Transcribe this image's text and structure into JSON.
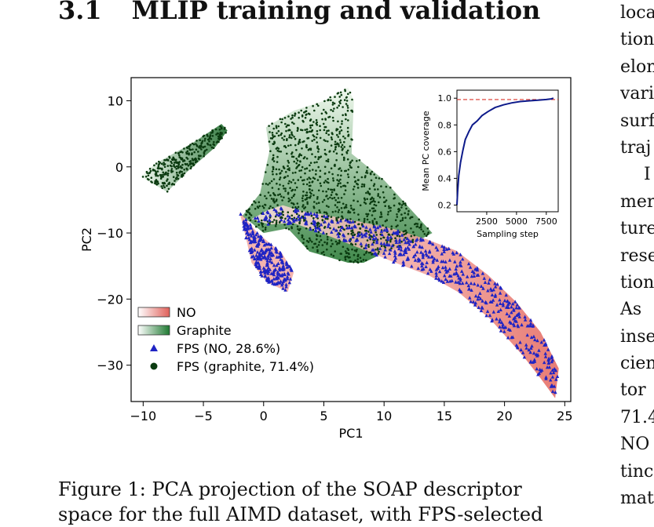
{
  "section": {
    "number": "3.1",
    "title": "MLIP training and validation"
  },
  "right_column_fragments": [
    "loca",
    "tion",
    "elon",
    "vari",
    "surf",
    "traj",
    "I",
    "mer",
    "ture",
    "rese",
    "tion",
    "As",
    "inse",
    "cien",
    "tor",
    "71.4",
    "NO",
    "tinc",
    "mat"
  ],
  "caption": {
    "line1": "Figure 1:  PCA projection of the SOAP descriptor",
    "line2": "space for the full AIMD dataset, with FPS-selected"
  },
  "colors": {
    "no": "#e8736a",
    "graphite": "#2e7d3a",
    "fps_no": "#1f24c4",
    "fps_graphite": "#0b3b10",
    "coverage": "#0d1a8a",
    "reference": "#d9352b"
  },
  "chart_data": [
    {
      "type": "scatter",
      "xlabel": "PC1",
      "ylabel": "PC2",
      "xlim": [
        -11,
        25.5
      ],
      "ylim": [
        -35.5,
        13.5
      ],
      "xticks": [
        -10,
        -5,
        0,
        5,
        10,
        15,
        20,
        25
      ],
      "yticks": [
        10,
        0,
        -10,
        -20,
        -30
      ],
      "xticklabels": [
        "−10",
        "−5",
        "0",
        "5",
        "10",
        "15",
        "20",
        "25"
      ],
      "yticklabels": [
        "10",
        "0",
        "−10",
        "−20",
        "−30"
      ],
      "legend_position": "lower-left",
      "legend": [
        {
          "label": "NO",
          "marker": "gradient-box"
        },
        {
          "label": "Graphite",
          "marker": "gradient-box"
        },
        {
          "label": "FPS (NO, 28.6%)",
          "marker": "triangle"
        },
        {
          "label": "FPS (graphite, 71.4%)",
          "marker": "circle"
        }
      ],
      "regions": {
        "graphite_cluster_small": [
          [
            -10.2,
            -1.5
          ],
          [
            -9,
            0.5
          ],
          [
            -6,
            3.5
          ],
          [
            -3.5,
            6.5
          ],
          [
            -3,
            5.5
          ],
          [
            -4,
            3
          ],
          [
            -6.5,
            -1
          ],
          [
            -8,
            -3.8
          ]
        ],
        "graphite_cluster_large": [
          [
            -1.8,
            -7.5
          ],
          [
            -0.3,
            -4
          ],
          [
            0.5,
            2.5
          ],
          [
            0.2,
            6
          ],
          [
            2.5,
            8.5
          ],
          [
            5,
            10
          ],
          [
            7,
            12
          ],
          [
            7.5,
            10
          ],
          [
            7.3,
            2
          ],
          [
            10,
            -2
          ],
          [
            12,
            -6
          ],
          [
            14,
            -10
          ],
          [
            13,
            -11
          ],
          [
            10,
            -13
          ],
          [
            8.3,
            -14.5
          ],
          [
            7,
            -14.5
          ],
          [
            3.8,
            -12.8
          ],
          [
            2,
            -9.3
          ],
          [
            0,
            -10
          ],
          [
            -1,
            -8.5
          ]
        ],
        "no_band_lower": [
          [
            -1,
            -7.9
          ],
          [
            0.4,
            -6.5
          ],
          [
            1.6,
            -5.8
          ],
          [
            3.2,
            -6.7
          ],
          [
            5.2,
            -7.3
          ],
          [
            8,
            -8.3
          ],
          [
            10.8,
            -9.4
          ],
          [
            13.6,
            -11
          ],
          [
            16,
            -12.7
          ],
          [
            18.6,
            -16.3
          ],
          [
            21,
            -20.5
          ],
          [
            23,
            -25
          ],
          [
            24.5,
            -30.5
          ],
          [
            24.2,
            -35
          ],
          [
            23,
            -32
          ],
          [
            21.5,
            -28.5
          ],
          [
            18.8,
            -23
          ],
          [
            16.2,
            -19
          ],
          [
            13.8,
            -16.5
          ],
          [
            10.8,
            -14.4
          ],
          [
            8,
            -12.3
          ],
          [
            5.2,
            -10.3
          ],
          [
            2.5,
            -8.5
          ],
          [
            0.5,
            -8.7
          ]
        ],
        "no_loop": [
          [
            -2,
            -6.8
          ],
          [
            -0.5,
            -10
          ],
          [
            1.5,
            -13
          ],
          [
            2.5,
            -16
          ],
          [
            2,
            -18.9
          ],
          [
            0.3,
            -17.5
          ],
          [
            -1,
            -14.5
          ],
          [
            -1.5,
            -10.5
          ]
        ]
      }
    },
    {
      "type": "line",
      "xlabel": "Sampling step",
      "ylabel": "Mean PC coverage",
      "xlim": [
        0,
        8500
      ],
      "ylim": [
        0.15,
        1.06
      ],
      "xticks": [
        2500,
        5000,
        7500
      ],
      "yticks": [
        0.2,
        0.4,
        0.6,
        0.8,
        1.0
      ],
      "yticklabels": [
        "0.2",
        "0.4",
        "0.6",
        "0.8",
        "1.0"
      ],
      "reference_line": 0.99,
      "series": [
        {
          "x": [
            0,
            60,
            150,
            300,
            500,
            700,
            1000,
            1300,
            1700,
            2100,
            2600,
            3200,
            3900,
            4600,
            5300,
            6000,
            6800,
            7500,
            7900,
            8100
          ],
          "values": [
            0.2,
            0.3,
            0.42,
            0.52,
            0.61,
            0.69,
            0.75,
            0.8,
            0.83,
            0.87,
            0.9,
            0.93,
            0.95,
            0.965,
            0.975,
            0.98,
            0.985,
            0.99,
            0.995,
            1.0
          ]
        }
      ]
    }
  ]
}
